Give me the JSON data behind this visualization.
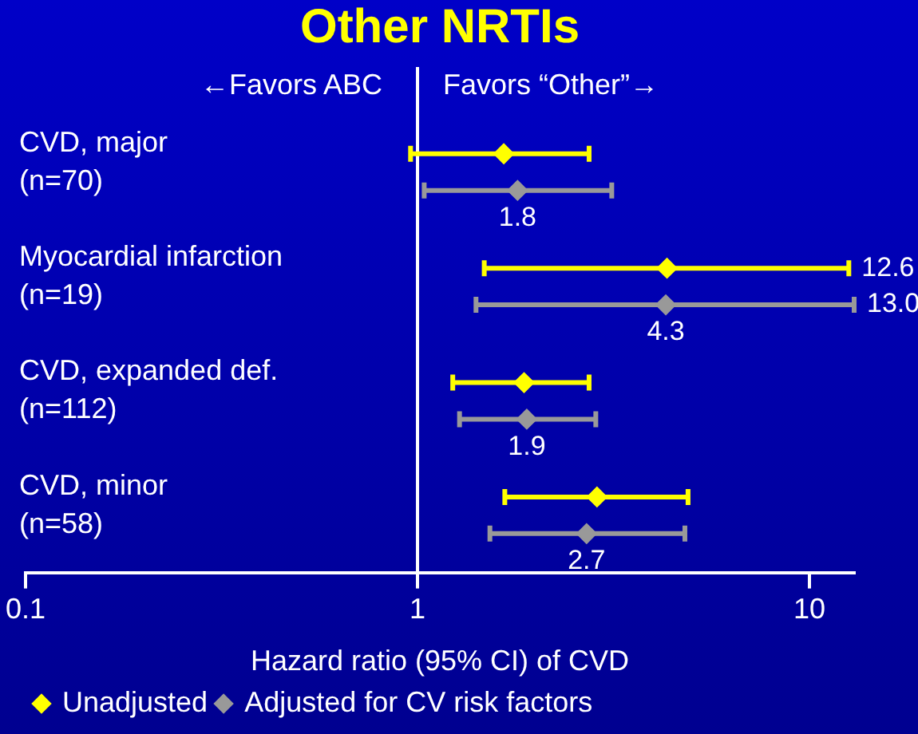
{
  "chart_data": {
    "type": "scatter",
    "title": "Other NRTIs",
    "xlabel": "Hazard ratio (95% CI) of CVD",
    "categories": [
      "CVD, major\n(n=70)",
      "Myocardial infarction\n(n=19)",
      "CVD, expanded def.\n(n=112)",
      "CVD, minor\n(n=58)"
    ],
    "series": [
      {
        "name": "Unadjusted",
        "color": "#ffff00",
        "values": [
          1.66,
          4.33,
          1.87,
          2.87
        ],
        "errors": [
          [
            0.96,
            2.74
          ],
          [
            1.48,
            12.6
          ],
          [
            1.23,
            2.74
          ],
          [
            1.67,
            4.9
          ]
        ]
      },
      {
        "name": "Adjusted for CV risk factors",
        "color": "#999999",
        "values": [
          1.8,
          4.3,
          1.9,
          2.7
        ],
        "errors": [
          [
            1.04,
            3.13
          ],
          [
            1.41,
            13.0
          ],
          [
            1.28,
            2.85
          ],
          [
            1.53,
            4.81
          ]
        ],
        "value_labels": [
          "1.8",
          "4.3",
          "1.9",
          "2.7"
        ]
      }
    ],
    "orientation": "horizontal",
    "xlim": [
      0.1,
      13
    ],
    "xticks": [
      0.1,
      1,
      10
    ],
    "log": "x",
    "grid": false,
    "marker": "diamond",
    "legend": "bottom left",
    "ref_lines": [
      {
        "axis": "x",
        "value": 1
      }
    ],
    "annotations": [
      "←Favors ABC",
      "Favors “Other”→",
      {
        "text": "12.6",
        "x": 12.6,
        "y": "Myocardial infarction\n(n=19)"
      },
      {
        "text": "13.0",
        "x": 13.0,
        "y": "Myocardial infarction\n(n=19)"
      }
    ]
  }
}
